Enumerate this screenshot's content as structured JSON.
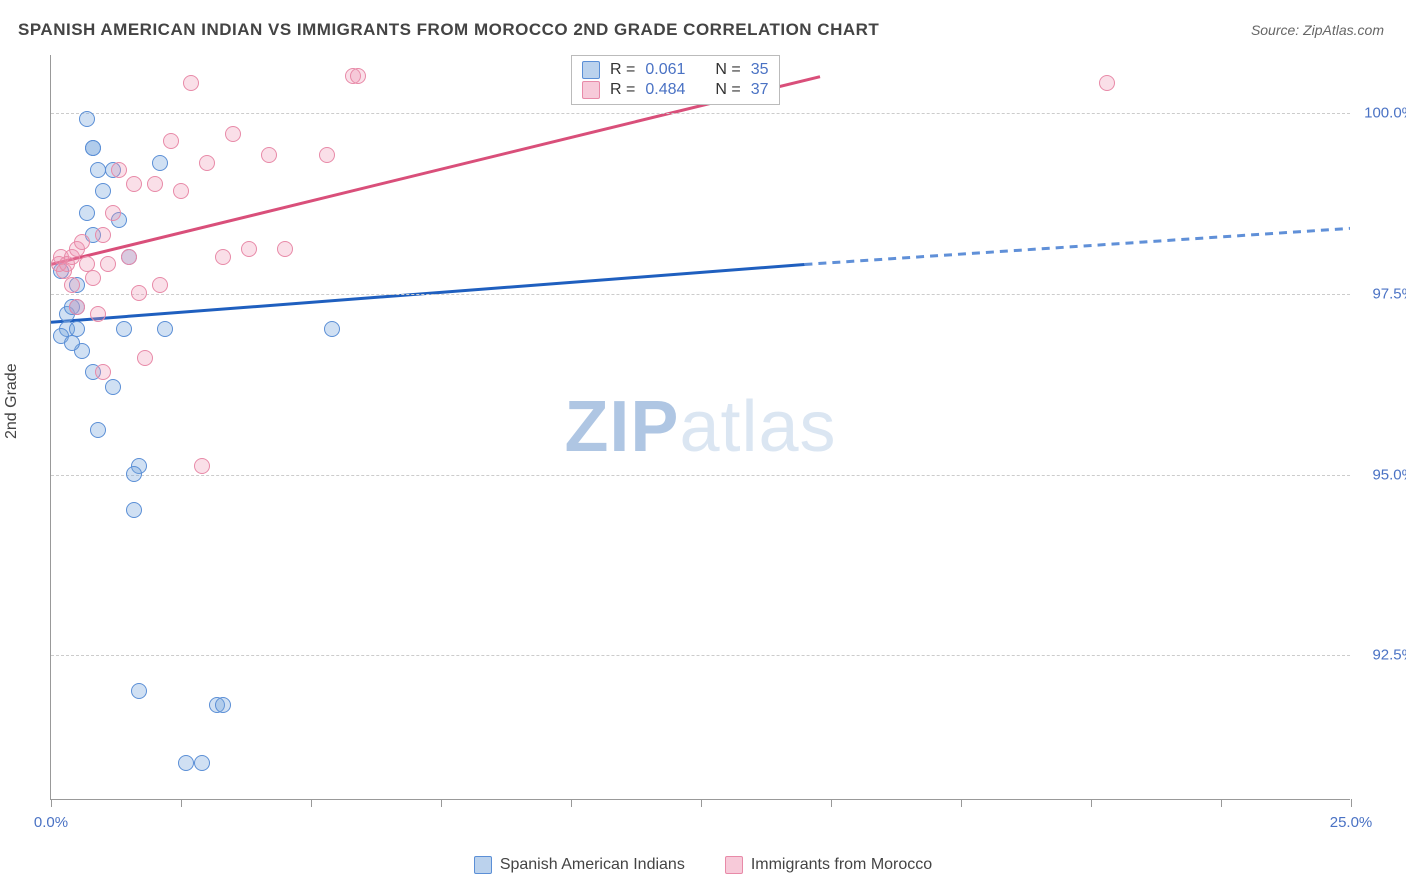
{
  "title": "SPANISH AMERICAN INDIAN VS IMMIGRANTS FROM MOROCCO 2ND GRADE CORRELATION CHART",
  "source": "Source: ZipAtlas.com",
  "ylabel": "2nd Grade",
  "watermark_part1": "ZIP",
  "watermark_part2": "atlas",
  "chart": {
    "type": "scatter",
    "xlim": [
      0,
      25
    ],
    "ylim": [
      90.5,
      100.8
    ],
    "x_ticks": [
      0,
      2.5,
      10,
      20,
      25
    ],
    "x_tick_labels": {
      "0": "0.0%",
      "25": "25.0%"
    },
    "y_ticks": [
      92.5,
      95.0,
      97.5,
      100.0
    ],
    "y_tick_labels": [
      "92.5%",
      "95.0%",
      "97.5%",
      "100.0%"
    ],
    "grid_color": "#cccccc",
    "background_color": "#ffffff",
    "series": [
      {
        "name": "Spanish American Indians",
        "color_fill": "rgba(120,165,220,0.35)",
        "color_stroke": "#5b8fd6",
        "trend_color": "#1f5fbf",
        "trend_dash_color": "#6090d8",
        "stats": {
          "R": "0.061",
          "N": "35"
        },
        "trend_solid": {
          "x1": 0,
          "y1": 97.1,
          "x2": 14.5,
          "y2": 97.9
        },
        "trend_dashed": {
          "x1": 14.5,
          "y1": 97.9,
          "x2": 25,
          "y2": 98.4
        },
        "points": [
          [
            0.2,
            97.8
          ],
          [
            0.3,
            97.2
          ],
          [
            0.3,
            97.0
          ],
          [
            0.2,
            96.9
          ],
          [
            0.4,
            97.3
          ],
          [
            0.5,
            97.0
          ],
          [
            0.7,
            99.9
          ],
          [
            0.8,
            99.5
          ],
          [
            0.8,
            99.5
          ],
          [
            0.9,
            99.2
          ],
          [
            1.0,
            98.9
          ],
          [
            0.7,
            98.6
          ],
          [
            0.8,
            98.3
          ],
          [
            0.5,
            97.6
          ],
          [
            0.5,
            97.3
          ],
          [
            0.6,
            96.7
          ],
          [
            0.8,
            96.4
          ],
          [
            0.9,
            95.6
          ],
          [
            1.2,
            99.2
          ],
          [
            1.3,
            98.5
          ],
          [
            1.5,
            98.0
          ],
          [
            1.4,
            97.0
          ],
          [
            1.7,
            95.1
          ],
          [
            1.6,
            95.0
          ],
          [
            1.6,
            94.5
          ],
          [
            1.7,
            92.0
          ],
          [
            2.1,
            99.3
          ],
          [
            2.2,
            97.0
          ],
          [
            2.6,
            91.0
          ],
          [
            2.9,
            91.0
          ],
          [
            3.2,
            91.8
          ],
          [
            3.3,
            91.8
          ],
          [
            5.4,
            97.0
          ],
          [
            1.2,
            96.2
          ],
          [
            0.4,
            96.8
          ]
        ]
      },
      {
        "name": "Immigrants from Morocco",
        "color_fill": "rgba(240,150,180,0.30)",
        "color_stroke": "#e88aa8",
        "trend_color": "#d94f7a",
        "stats": {
          "R": "0.484",
          "N": "37"
        },
        "trend_solid": {
          "x1": 0,
          "y1": 97.9,
          "x2": 14.8,
          "y2": 100.5
        },
        "points": [
          [
            0.15,
            97.9
          ],
          [
            0.2,
            98.0
          ],
          [
            0.25,
            97.8
          ],
          [
            0.3,
            97.9
          ],
          [
            0.4,
            98.0
          ],
          [
            0.4,
            97.6
          ],
          [
            0.5,
            98.1
          ],
          [
            0.5,
            97.3
          ],
          [
            0.6,
            98.2
          ],
          [
            0.7,
            97.9
          ],
          [
            0.8,
            97.7
          ],
          [
            0.9,
            97.2
          ],
          [
            1.0,
            98.3
          ],
          [
            1.1,
            97.9
          ],
          [
            1.2,
            98.6
          ],
          [
            1.3,
            99.2
          ],
          [
            1.5,
            98.0
          ],
          [
            1.6,
            99.0
          ],
          [
            1.7,
            97.5
          ],
          [
            1.8,
            96.6
          ],
          [
            2.0,
            99.0
          ],
          [
            2.1,
            97.6
          ],
          [
            2.3,
            99.6
          ],
          [
            2.5,
            98.9
          ],
          [
            2.7,
            100.4
          ],
          [
            3.0,
            99.3
          ],
          [
            3.3,
            98.0
          ],
          [
            3.5,
            99.7
          ],
          [
            3.8,
            98.1
          ],
          [
            4.2,
            99.4
          ],
          [
            4.5,
            98.1
          ],
          [
            5.3,
            99.4
          ],
          [
            5.8,
            100.5
          ],
          [
            5.9,
            100.5
          ],
          [
            2.9,
            95.1
          ],
          [
            1.0,
            96.4
          ],
          [
            20.3,
            100.4
          ]
        ]
      }
    ]
  },
  "legend_bottom": [
    {
      "swatch": "blue",
      "label": "Spanish American Indians"
    },
    {
      "swatch": "pink",
      "label": "Immigrants from Morocco"
    }
  ],
  "stats_box": [
    {
      "swatch": "blue",
      "r_label": "R  =",
      "r_value": "0.061",
      "n_label": "N  =",
      "n_value": "35"
    },
    {
      "swatch": "pink",
      "r_label": "R  =",
      "r_value": "0.484",
      "n_label": "N  =",
      "n_value": "37"
    }
  ]
}
